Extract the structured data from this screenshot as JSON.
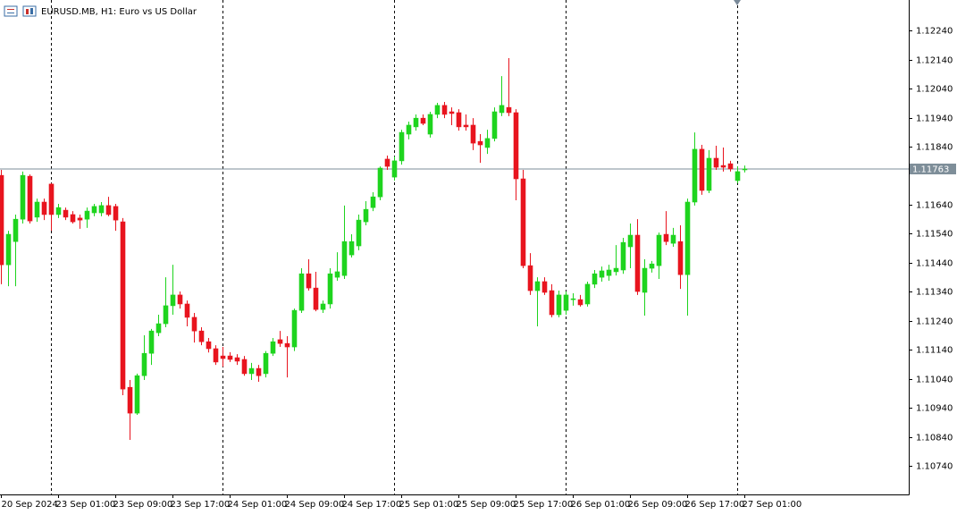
{
  "chart_data": {
    "type": "candlestick",
    "title": "EURUSD.MB, H1:  Euro vs US Dollar",
    "up_color": "#1ed41e",
    "down_color": "#e8141e",
    "last_price_color": "#7e8e99",
    "ylim": [
      1.10642,
      1.12345
    ],
    "yticks": [
      {
        "value": 1.1224,
        "label": "1.12240"
      },
      {
        "value": 1.1214,
        "label": "1.12140"
      },
      {
        "value": 1.1204,
        "label": "1.12040"
      },
      {
        "value": 1.1194,
        "label": "1.11940"
      },
      {
        "value": 1.1184,
        "label": "1.11840"
      },
      {
        "value": 1.1164,
        "label": "1.11640"
      },
      {
        "value": 1.1154,
        "label": "1.11540"
      },
      {
        "value": 1.1144,
        "label": "1.11440"
      },
      {
        "value": 1.1134,
        "label": "1.11340"
      },
      {
        "value": 1.1124,
        "label": "1.11240"
      },
      {
        "value": 1.1114,
        "label": "1.11140"
      },
      {
        "value": 1.1104,
        "label": "1.11040"
      },
      {
        "value": 1.1094,
        "label": "1.10940"
      },
      {
        "value": 1.1084,
        "label": "1.10840"
      },
      {
        "value": 1.1074,
        "label": "1.10740"
      }
    ],
    "last_price": 1.11763,
    "categories": [
      "20 Sep 2024",
      null,
      null,
      null,
      null,
      null,
      null,
      null,
      "23 Sep 01:00",
      null,
      null,
      null,
      null,
      null,
      null,
      null,
      "23 Sep 09:00",
      null,
      null,
      null,
      null,
      null,
      null,
      null,
      "23 Sep 17:00",
      null,
      null,
      null,
      null,
      null,
      null,
      null,
      "24 Sep 01:00",
      null,
      null,
      null,
      null,
      null,
      null,
      null,
      "24 Sep 09:00",
      null,
      null,
      null,
      null,
      null,
      null,
      null,
      "24 Sep 17:00",
      null,
      null,
      null,
      null,
      null,
      null,
      null,
      "25 Sep 01:00",
      null,
      null,
      null,
      null,
      null,
      null,
      null,
      "25 Sep 09:00",
      null,
      null,
      null,
      null,
      null,
      null,
      null,
      "25 Sep 17:00",
      null,
      null,
      null,
      null,
      null,
      null,
      null,
      "26 Sep 01:00",
      null,
      null,
      null,
      null,
      null,
      null,
      null,
      "26 Sep 09:00",
      null,
      null,
      null,
      null,
      null,
      null,
      null,
      "26 Sep 17:00",
      null,
      null,
      null,
      null,
      null,
      null,
      null,
      "27 Sep 01:00"
    ],
    "open": [
      1.11741,
      1.11433,
      1.11513,
      1.1159,
      1.11738,
      1.11597,
      1.11649,
      1.11711,
      1.11606,
      1.11621,
      1.11606,
      1.11594,
      1.1159,
      1.11612,
      1.11612,
      1.11637,
      1.11634,
      1.11581,
      1.11011,
      1.10922,
      1.11051,
      1.11128,
      1.11199,
      1.1123,
      1.11292,
      1.11329,
      1.11298,
      1.11252,
      1.11205,
      1.11168,
      1.11144,
      1.11119,
      1.11119,
      1.11113,
      1.11107,
      1.11058,
      1.11076,
      1.11058,
      1.11128,
      1.11175,
      1.11162,
      1.1115,
      1.11276,
      1.11402,
      1.11353,
      1.11279,
      1.11298,
      1.1139,
      1.11396,
      1.11467,
      1.11498,
      1.11581,
      1.1163,
      1.11667,
      1.11797,
      1.11735,
      1.11791,
      1.11883,
      1.11908,
      1.11938,
      1.11883,
      1.11951,
      1.11982,
      1.1196,
      1.11957,
      1.11914,
      1.11914,
      1.11858,
      1.11837,
      1.11868,
      1.11957,
      1.11975,
      1.11957,
      1.11729,
      1.1143,
      1.11344,
      1.11375,
      1.11344,
      1.11261,
      1.11276,
      1.11313,
      1.11313,
      1.11298,
      1.11366,
      1.1139,
      1.11396,
      1.11409,
      1.11415,
      1.11495,
      1.11535,
      1.11338,
      1.11421,
      1.1143,
      1.11538,
      1.11507,
      1.11513,
      1.11399,
      1.11649,
      1.11831,
      1.11689,
      1.118,
      1.11775,
      1.11781,
      1.11723,
      1.1176
    ],
    "high": [
      1.1176,
      1.1155,
      1.11606,
      1.11754,
      1.11744,
      1.11661,
      1.11661,
      1.11714,
      1.11643,
      1.1163,
      1.11618,
      1.11606,
      1.1163,
      1.11643,
      1.11649,
      1.11667,
      1.11643,
      1.11594,
      1.11036,
      1.11058,
      1.1119,
      1.11212,
      1.11261,
      1.1139,
      1.11433,
      1.11341,
      1.1131,
      1.11267,
      1.11218,
      1.11181,
      1.11156,
      1.1115,
      1.11132,
      1.11125,
      1.11119,
      1.11095,
      1.11088,
      1.11136,
      1.11181,
      1.11205,
      1.11187,
      1.11282,
      1.11421,
      1.11452,
      1.11409,
      1.1131,
      1.11421,
      1.11476,
      1.11637,
      1.11538,
      1.11606,
      1.11652,
      1.11683,
      1.11772,
      1.11809,
      1.11806,
      1.11898,
      1.11926,
      1.11951,
      1.11951,
      1.1196,
      1.11991,
      1.11994,
      1.11975,
      1.11969,
      1.11951,
      1.11938,
      1.11883,
      1.11898,
      1.11975,
      1.12083,
      1.12145,
      1.11969,
      1.1176,
      1.11473,
      1.1139,
      1.1139,
      1.11366,
      1.11344,
      1.11341,
      1.11335,
      1.11329,
      1.11375,
      1.11415,
      1.11427,
      1.11433,
      1.11501,
      1.11526,
      1.11575,
      1.1159,
      1.11452,
      1.11446,
      1.11544,
      1.11618,
      1.1156,
      1.11569,
      1.11661,
      1.11889,
      1.11846,
      1.11828,
      1.11843,
      1.11837,
      1.11791,
      1.11772,
      1.11775
    ],
    "low": [
      1.11366,
      1.11359,
      1.11359,
      1.11575,
      1.11575,
      1.11581,
      1.11587,
      1.1155,
      1.11594,
      1.11587,
      1.11575,
      1.11557,
      1.1156,
      1.116,
      1.116,
      1.116,
      1.1155,
      1.10984,
      1.1083,
      1.10916,
      1.11036,
      1.11088,
      1.11187,
      1.11218,
      1.11261,
      1.11282,
      1.11221,
      1.11165,
      1.11156,
      1.11131,
      1.11088,
      1.11082,
      1.11098,
      1.11088,
      1.11051,
      1.11036,
      1.1103,
      1.11045,
      1.11119,
      1.1115,
      1.11045,
      1.11136,
      1.11267,
      1.11344,
      1.11273,
      1.11267,
      1.11282,
      1.11378,
      1.11384,
      1.11458,
      1.11483,
      1.11569,
      1.11618,
      1.11655,
      1.1176,
      1.11723,
      1.11778,
      1.11865,
      1.11895,
      1.11914,
      1.11871,
      1.11938,
      1.11938,
      1.11914,
      1.11895,
      1.11895,
      1.11828,
      1.11784,
      1.11815,
      1.11858,
      1.11945,
      1.11945,
      1.11655,
      1.11421,
      1.11329,
      1.11221,
      1.11329,
      1.11252,
      1.11252,
      1.11261,
      1.11292,
      1.11289,
      1.11289,
      1.11353,
      1.11375,
      1.11378,
      1.11396,
      1.11402,
      1.11421,
      1.11329,
      1.11258,
      1.11406,
      1.11384,
      1.11501,
      1.11495,
      1.1135,
      1.11258,
      1.11637,
      1.11674,
      1.1168,
      1.1176,
      1.11754,
      1.11754,
      1.11714,
      1.11751
    ],
    "close": [
      1.11433,
      1.11538,
      1.1159,
      1.11741,
      1.11584,
      1.11649,
      1.11606,
      1.11606,
      1.1163,
      1.11597,
      1.11581,
      1.11587,
      1.11618,
      1.11634,
      1.11637,
      1.11606,
      1.11587,
      1.11005,
      1.10922,
      1.11051,
      1.11128,
      1.11205,
      1.1123,
      1.11292,
      1.11329,
      1.11298,
      1.11252,
      1.11205,
      1.11168,
      1.11144,
      1.11098,
      1.1111,
      1.11107,
      1.11101,
      1.11058,
      1.11076,
      1.11051,
      1.11128,
      1.11168,
      1.11162,
      1.1115,
      1.11276,
      1.11402,
      1.11353,
      1.11279,
      1.11298,
      1.11402,
      1.11409,
      1.11513,
      1.11513,
      1.11587,
      1.11624,
      1.11667,
      1.11766,
      1.11772,
      1.11791,
      1.11889,
      1.11914,
      1.11938,
      1.1192,
      1.11951,
      1.11982,
      1.11951,
      1.11954,
      1.11908,
      1.11908,
      1.11852,
      1.11846,
      1.11868,
      1.1196,
      1.11982,
      1.11957,
      1.11729,
      1.1143,
      1.11344,
      1.11375,
      1.11338,
      1.11261,
      1.11329,
      1.11329,
      1.11316,
      1.11295,
      1.11366,
      1.11402,
      1.11412,
      1.11415,
      1.11421,
      1.1151,
      1.11535,
      1.11341,
      1.11421,
      1.11436,
      1.11535,
      1.11513,
      1.11535,
      1.11399,
      1.11649,
      1.11831,
      1.11689,
      1.118,
      1.11769,
      1.11769,
      1.11763,
      1.11754,
      1.11763
    ]
  }
}
